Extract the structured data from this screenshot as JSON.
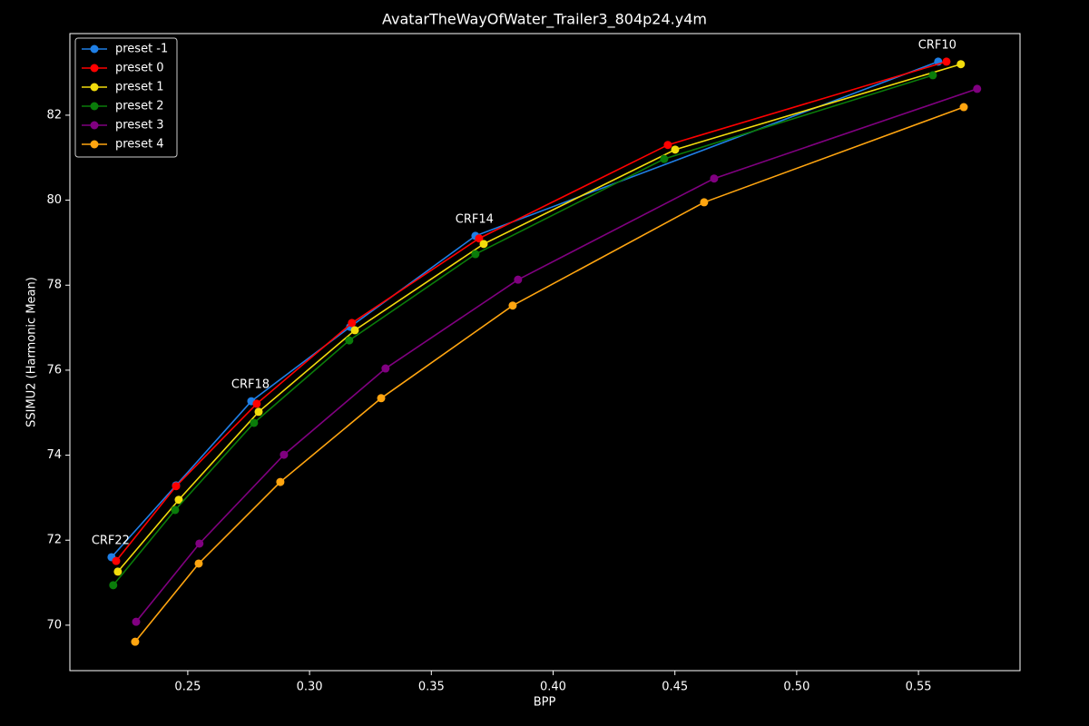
{
  "chart_data": {
    "type": "line",
    "title": "AvatarTheWayOfWater_Trailer3_804p24.y4m",
    "x_label": "BPP",
    "y_label": "SSIMU2 (Harmonic Mean)",
    "xlim": [
      0.2016,
      0.5917
    ],
    "ylim": [
      68.93,
      83.92
    ],
    "xticks": [
      0.25,
      {
        "value": 0.3,
        "label": "0.30"
      },
      0.35,
      {
        "value": 0.4,
        "label": "0.40"
      },
      0.45,
      {
        "value": 0.5,
        "label": "0.50"
      },
      0.55
    ],
    "yticks": [
      70,
      72,
      74,
      76,
      78,
      80,
      82
    ],
    "legend": "upper left",
    "grid": false,
    "annotations": [
      "CRF22",
      "CRF18",
      "CRF14",
      "CRF10"
    ],
    "series": [
      {
        "name": "preset -1",
        "color": "#1f7fe6",
        "x": [
          0.2187,
          0.2452,
          0.2761,
          0.3167,
          0.3681,
          0.5581
        ],
        "values": [
          71.6,
          73.29,
          75.27,
          77.02,
          79.16,
          83.26
        ]
      },
      {
        "name": "preset 0",
        "color": "#ff0000",
        "x": [
          0.2206,
          0.2452,
          0.2783,
          0.3174,
          0.3696,
          0.4471,
          0.5615
        ],
        "values": [
          71.51,
          73.27,
          75.21,
          77.11,
          79.1,
          81.3,
          83.26
        ]
      },
      {
        "name": "preset 1",
        "color": "#f2dc0c",
        "x": [
          0.2213,
          0.2463,
          0.2791,
          0.3186,
          0.3715,
          0.4501,
          0.5674
        ],
        "values": [
          71.26,
          72.95,
          75.02,
          76.94,
          78.97,
          81.19,
          83.2
        ]
      },
      {
        "name": "preset 2",
        "color": "#0a7c0a",
        "x": [
          0.2194,
          0.2448,
          0.2772,
          0.3163,
          0.3681,
          0.4456,
          0.5559
        ],
        "values": [
          70.94,
          72.71,
          74.76,
          76.7,
          78.73,
          80.97,
          82.94
        ]
      },
      {
        "name": "preset 3",
        "color": "#800080",
        "x": [
          0.2288,
          0.2548,
          0.2895,
          0.3312,
          0.3856,
          0.4661,
          0.5741
        ],
        "values": [
          70.08,
          71.92,
          74.01,
          76.04,
          78.13,
          80.51,
          82.62
        ]
      },
      {
        "name": "preset 4",
        "color": "#ffa510",
        "x": [
          0.2284,
          0.2545,
          0.288,
          0.3294,
          0.3834,
          0.462,
          0.5686
        ],
        "values": [
          69.61,
          71.45,
          73.37,
          75.34,
          77.52,
          79.95,
          82.19
        ]
      }
    ]
  }
}
